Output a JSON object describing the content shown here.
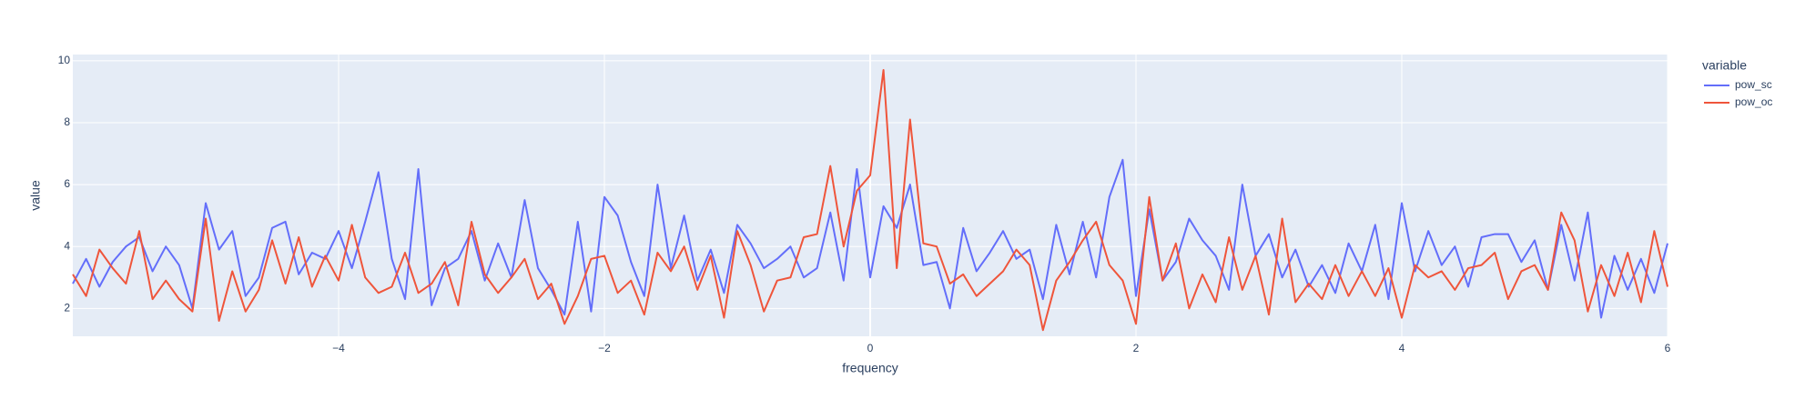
{
  "chart_data": {
    "type": "line",
    "x_label": "frequency",
    "y_label": "value",
    "legend_title": "variable",
    "legend": "right",
    "grid": true,
    "x": [
      -6.0,
      -5.9,
      -5.8,
      -5.7,
      -5.6,
      -5.5,
      -5.4,
      -5.3,
      -5.2,
      -5.1,
      -5.0,
      -4.9,
      -4.8,
      -4.7,
      -4.6,
      -4.5,
      -4.4,
      -4.3,
      -4.2,
      -4.1,
      -4.0,
      -3.9,
      -3.8,
      -3.7,
      -3.6,
      -3.5,
      -3.4,
      -3.3,
      -3.2,
      -3.1,
      -3.0,
      -2.9,
      -2.8,
      -2.7,
      -2.6,
      -2.5,
      -2.4,
      -2.3,
      -2.2,
      -2.1,
      -2.0,
      -1.9,
      -1.8,
      -1.7,
      -1.6,
      -1.5,
      -1.4,
      -1.3,
      -1.2,
      -1.1,
      -1.0,
      -0.9,
      -0.8,
      -0.7,
      -0.6,
      -0.5,
      -0.4,
      -0.3,
      -0.2,
      -0.1,
      0.0,
      0.1,
      0.2,
      0.3,
      0.4,
      0.5,
      0.6,
      0.7,
      0.8,
      0.9,
      1.0,
      1.1,
      1.2,
      1.3,
      1.4,
      1.5,
      1.6,
      1.7,
      1.8,
      1.9,
      2.0,
      2.1,
      2.2,
      2.3,
      2.4,
      2.5,
      2.6,
      2.7,
      2.8,
      2.9,
      3.0,
      3.1,
      3.2,
      3.3,
      3.4,
      3.5,
      3.6,
      3.7,
      3.8,
      3.9,
      4.0,
      4.1,
      4.2,
      4.3,
      4.4,
      4.5,
      4.6,
      4.7,
      4.8,
      4.9,
      5.0,
      5.1,
      5.2,
      5.3,
      5.4,
      5.5,
      5.6,
      5.7,
      5.8,
      5.9,
      6.0
    ],
    "series": [
      {
        "name": "pow_sc",
        "color": "#636efa",
        "values": [
          2.8,
          3.6,
          2.7,
          3.5,
          4.0,
          4.3,
          3.2,
          4.0,
          3.4,
          2.0,
          5.4,
          3.9,
          4.5,
          2.4,
          3.0,
          4.6,
          4.8,
          3.1,
          3.8,
          3.6,
          4.5,
          3.3,
          4.8,
          6.4,
          3.6,
          2.3,
          6.5,
          2.1,
          3.3,
          3.6,
          4.5,
          2.9,
          4.1,
          3.0,
          5.5,
          3.3,
          2.6,
          1.8,
          4.8,
          1.9,
          5.6,
          5.0,
          3.5,
          2.4,
          6.0,
          3.3,
          5.0,
          2.9,
          3.9,
          2.5,
          4.7,
          4.1,
          3.3,
          3.6,
          4.0,
          3.0,
          3.3,
          5.1,
          2.9,
          6.5,
          3.0,
          5.3,
          4.6,
          6.0,
          3.4,
          3.5,
          2.0,
          4.6,
          3.2,
          3.8,
          4.5,
          3.6,
          3.9,
          2.3,
          4.7,
          3.1,
          4.8,
          3.0,
          5.6,
          6.8,
          2.4,
          5.2,
          2.9,
          3.5,
          4.9,
          4.2,
          3.7,
          2.6,
          6.0,
          3.7,
          4.4,
          3.0,
          3.9,
          2.7,
          3.4,
          2.5,
          4.1,
          3.2,
          4.7,
          2.3,
          5.4,
          3.2,
          4.5,
          3.4,
          4.0,
          2.7,
          4.3,
          4.4,
          4.4,
          3.5,
          4.2,
          2.6,
          4.7,
          2.9,
          5.1,
          1.7,
          3.7,
          2.6,
          3.6,
          2.5,
          4.1
        ]
      },
      {
        "name": "pow_oc",
        "color": "#EF553B",
        "values": [
          3.1,
          2.4,
          3.9,
          3.3,
          2.8,
          4.5,
          2.3,
          2.9,
          2.3,
          1.9,
          4.9,
          1.6,
          3.2,
          1.9,
          2.6,
          4.2,
          2.8,
          4.3,
          2.7,
          3.7,
          2.9,
          4.7,
          3.0,
          2.5,
          2.7,
          3.8,
          2.5,
          2.8,
          3.5,
          2.1,
          4.8,
          3.1,
          2.5,
          3.0,
          3.6,
          2.3,
          2.8,
          1.5,
          2.4,
          3.6,
          3.7,
          2.5,
          2.9,
          1.8,
          3.8,
          3.2,
          4.0,
          2.6,
          3.7,
          1.7,
          4.5,
          3.4,
          1.9,
          2.9,
          3.0,
          4.3,
          4.4,
          6.6,
          4.0,
          5.8,
          6.3,
          9.7,
          3.3,
          8.1,
          4.1,
          4.0,
          2.8,
          3.1,
          2.4,
          2.8,
          3.2,
          3.9,
          3.4,
          1.3,
          2.9,
          3.5,
          4.2,
          4.8,
          3.4,
          2.9,
          1.5,
          5.6,
          2.9,
          4.1,
          2.0,
          3.1,
          2.2,
          4.3,
          2.6,
          3.7,
          1.8,
          4.9,
          2.2,
          2.8,
          2.3,
          3.4,
          2.4,
          3.2,
          2.4,
          3.3,
          1.7,
          3.4,
          3.0,
          3.2,
          2.6,
          3.3,
          3.4,
          3.8,
          2.3,
          3.2,
          3.4,
          2.6,
          5.1,
          4.2,
          1.9,
          3.4,
          2.4,
          3.8,
          2.2,
          4.5,
          2.7
        ]
      }
    ],
    "xlim": [
      -6,
      6
    ],
    "xticks": [
      {
        "value": -4,
        "label": "−4"
      },
      {
        "value": -2,
        "label": "−2"
      },
      0,
      2,
      4,
      6
    ],
    "ylim": [
      1.1,
      10.2
    ],
    "yticks": [
      2,
      4,
      6,
      8,
      10
    ]
  }
}
